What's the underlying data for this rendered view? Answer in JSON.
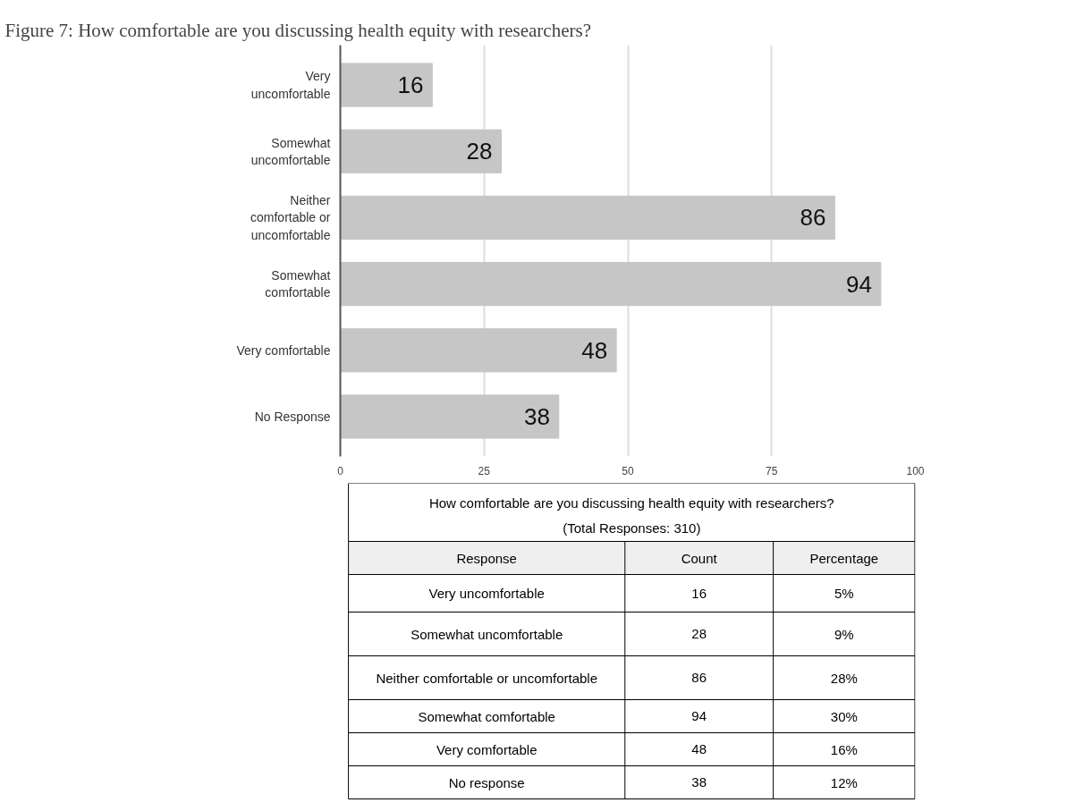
{
  "chart_data": [
    {
      "type": "bar",
      "title": "Figure 7: How comfortable are you discussing health equity with researchers?",
      "orientation": "horizontal",
      "categories": [
        "Very uncomfortable",
        "Somewhat uncomfortable",
        "Neither comfortable or uncomfortable",
        "Somewhat comfortable",
        "Very comfortable",
        "No Response"
      ],
      "values": [
        16,
        28,
        86,
        94,
        48,
        38
      ],
      "color": "#c6c6c6",
      "xlim": [
        0,
        100
      ],
      "xticks": [
        0,
        25,
        50,
        75,
        100
      ],
      "grid": "x",
      "data_labels": true
    },
    {
      "type": "other",
      "title": "How comfortable are you discussing health equity with researchers?",
      "subtitle": "(Total Responses: 310)",
      "annotations": [
        "Response",
        "Count",
        "Percentage",
        "Very uncomfortable",
        "16",
        "5%",
        "Somewhat uncomfortable",
        "28",
        "9%",
        "Neither comfortable or uncomfortable",
        "86",
        "28%",
        "Somewhat comfortable",
        "94",
        "30%",
        "Very comfortable",
        "48",
        "16%",
        "No response",
        "38",
        "12%"
      ]
    }
  ]
}
